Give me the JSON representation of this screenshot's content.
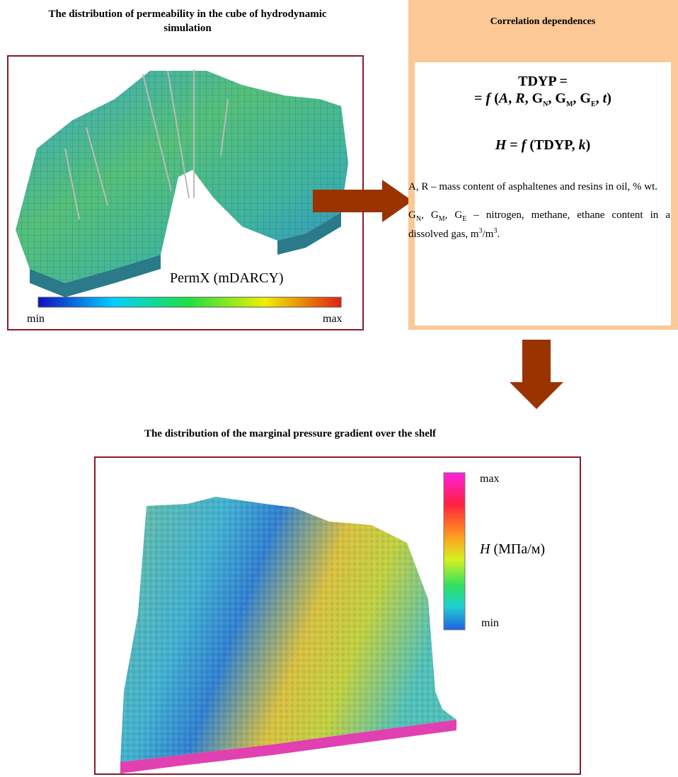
{
  "left_panel": {
    "title": "The distribution of permeability in the cube of hydrodynamic simulation",
    "legend_label": "PermX (mDARCY)",
    "min_label": "min",
    "max_label": "max"
  },
  "correlation_box": {
    "header": "Correlation dependences",
    "formula_1": {
      "line_1": "TDYP =",
      "line_2": [
        "= ",
        "f",
        " (",
        "A",
        ", ",
        "R",
        ", G",
        "N",
        ", G",
        "M",
        ", G",
        "E",
        ", ",
        "t",
        ")"
      ]
    },
    "formula_2": [
      "H",
      " = ",
      "f",
      " (TDYP, ",
      "k",
      ")"
    ],
    "description_1": "A, R – mass content of asphaltenes and resins in oil, % wt.",
    "description_2": [
      "G",
      "N",
      ", G",
      "M",
      ", G",
      "E",
      " – nitrogen, methane, ethane content in a dissolved gas, m",
      "3",
      "/m",
      "3",
      "."
    ]
  },
  "bottom_panel": {
    "title": "The distribution of the marginal pressure gradient over the shelf",
    "max_label": "max",
    "min_label": "min",
    "legend_label": [
      "H",
      " (МПа/м)"
    ]
  }
}
